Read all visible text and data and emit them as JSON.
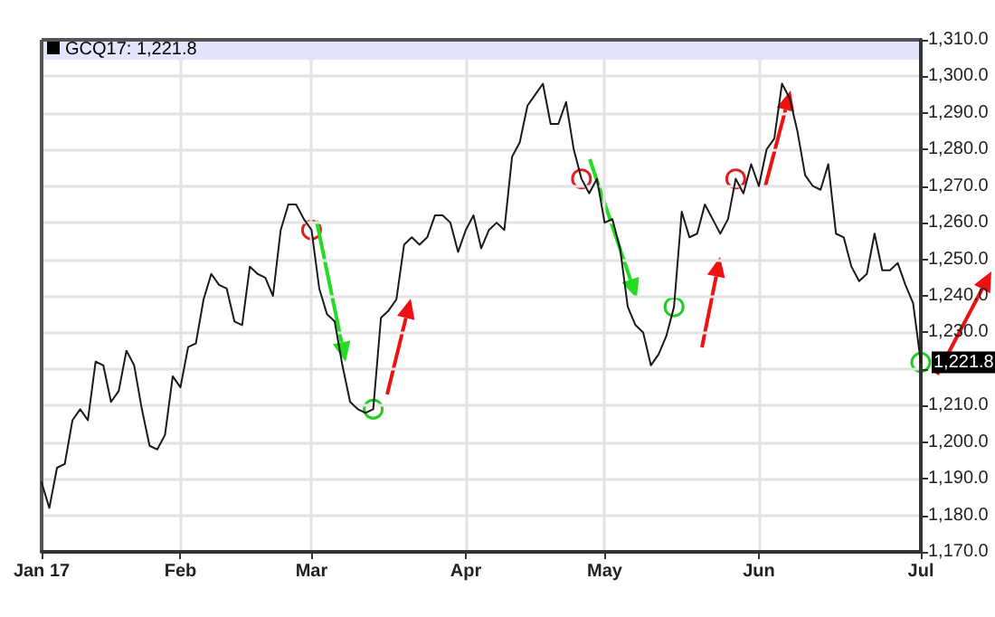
{
  "chart_data": {
    "type": "line",
    "title": "GCQ17: 1,221.8",
    "categories": [
      "Jan 17",
      null,
      null,
      null,
      null,
      null,
      null,
      null,
      null,
      null,
      null,
      null,
      null,
      null,
      null,
      null,
      null,
      null,
      "Feb",
      null,
      null,
      null,
      null,
      null,
      null,
      null,
      null,
      null,
      null,
      null,
      null,
      null,
      null,
      null,
      null,
      "Mar",
      null,
      null,
      null,
      null,
      null,
      null,
      null,
      null,
      null,
      null,
      null,
      null,
      null,
      null,
      null,
      null,
      null,
      null,
      null,
      "Apr",
      null,
      null,
      null,
      null,
      null,
      null,
      null,
      null,
      null,
      null,
      null,
      null,
      null,
      null,
      null,
      null,
      null,
      "May",
      null,
      null,
      null,
      null,
      null,
      null,
      null,
      null,
      null,
      null,
      null,
      null,
      null,
      null,
      null,
      null,
      null,
      null,
      null,
      "Jun",
      null,
      null,
      null,
      null,
      null,
      null,
      null,
      null,
      null,
      null,
      null,
      null,
      null,
      null,
      null,
      null,
      null,
      null,
      null,
      null,
      "Jul"
    ],
    "series": [
      {
        "color": "#1a1a1a",
        "values": [
          1189,
          1182,
          1193,
          1194,
          1206,
          1209,
          1206,
          1222,
          1221,
          1211,
          1214,
          1225,
          1221,
          1209,
          1199,
          1198,
          1202,
          1218,
          1215,
          1226,
          1227,
          1239,
          1246,
          1243,
          1242,
          1233,
          1232,
          1248,
          1246,
          1245,
          1240,
          1258,
          1265,
          1265,
          1261,
          1258,
          1242,
          1235,
          1233,
          1221,
          1211,
          1209,
          1208,
          1209,
          1234,
          1236,
          1239,
          1254,
          1256,
          1254,
          1256,
          1262,
          1262,
          1260,
          1252,
          1258,
          1262,
          1253,
          1258,
          1260,
          1258,
          1278,
          1282,
          1292,
          1295,
          1298,
          1287,
          1287,
          1293,
          1280,
          1272,
          1268,
          1272,
          1260,
          1261,
          1253,
          1237,
          1232,
          1230,
          1221,
          1224,
          1229,
          1237,
          1263,
          1256,
          1257,
          1265,
          1261,
          1257,
          1261,
          1272,
          1268,
          1276,
          1270,
          1280,
          1283,
          1298,
          1294,
          1285,
          1273,
          1270,
          1269,
          1276,
          1257,
          1256,
          1248,
          1244,
          1246,
          1257,
          1247,
          1247,
          1249,
          1243,
          1238,
          1221.8
        ]
      }
    ],
    "ylim": [
      1170,
      1310
    ],
    "yticks": [
      {
        "value": 1170,
        "label": "1,170.0"
      },
      {
        "value": 1180,
        "label": "1,180.0"
      },
      {
        "value": 1190,
        "label": "1,190.0"
      },
      {
        "value": 1200,
        "label": "1,200.0"
      },
      {
        "value": 1210,
        "label": "1,210.0"
      },
      {
        "value": 1220,
        "label": null
      },
      {
        "value": 1230,
        "label": "1,230.0"
      },
      {
        "value": 1240,
        "label": "1,240.0"
      },
      {
        "value": 1250,
        "label": "1,250.0"
      },
      {
        "value": 1260,
        "label": "1,260.0"
      },
      {
        "value": 1270,
        "label": "1,270.0"
      },
      {
        "value": 1280,
        "label": "1,280.0"
      },
      {
        "value": 1290,
        "label": "1,290.0"
      },
      {
        "value": 1300,
        "label": "1,300.0"
      },
      {
        "value": 1310,
        "label": "1,310.0"
      }
    ],
    "annotations": [
      {
        "text": "1,221.8",
        "x": "Jul",
        "y": 1221.8
      }
    ],
    "grid": true,
    "marker": "none",
    "line_style": "solid"
  }
}
